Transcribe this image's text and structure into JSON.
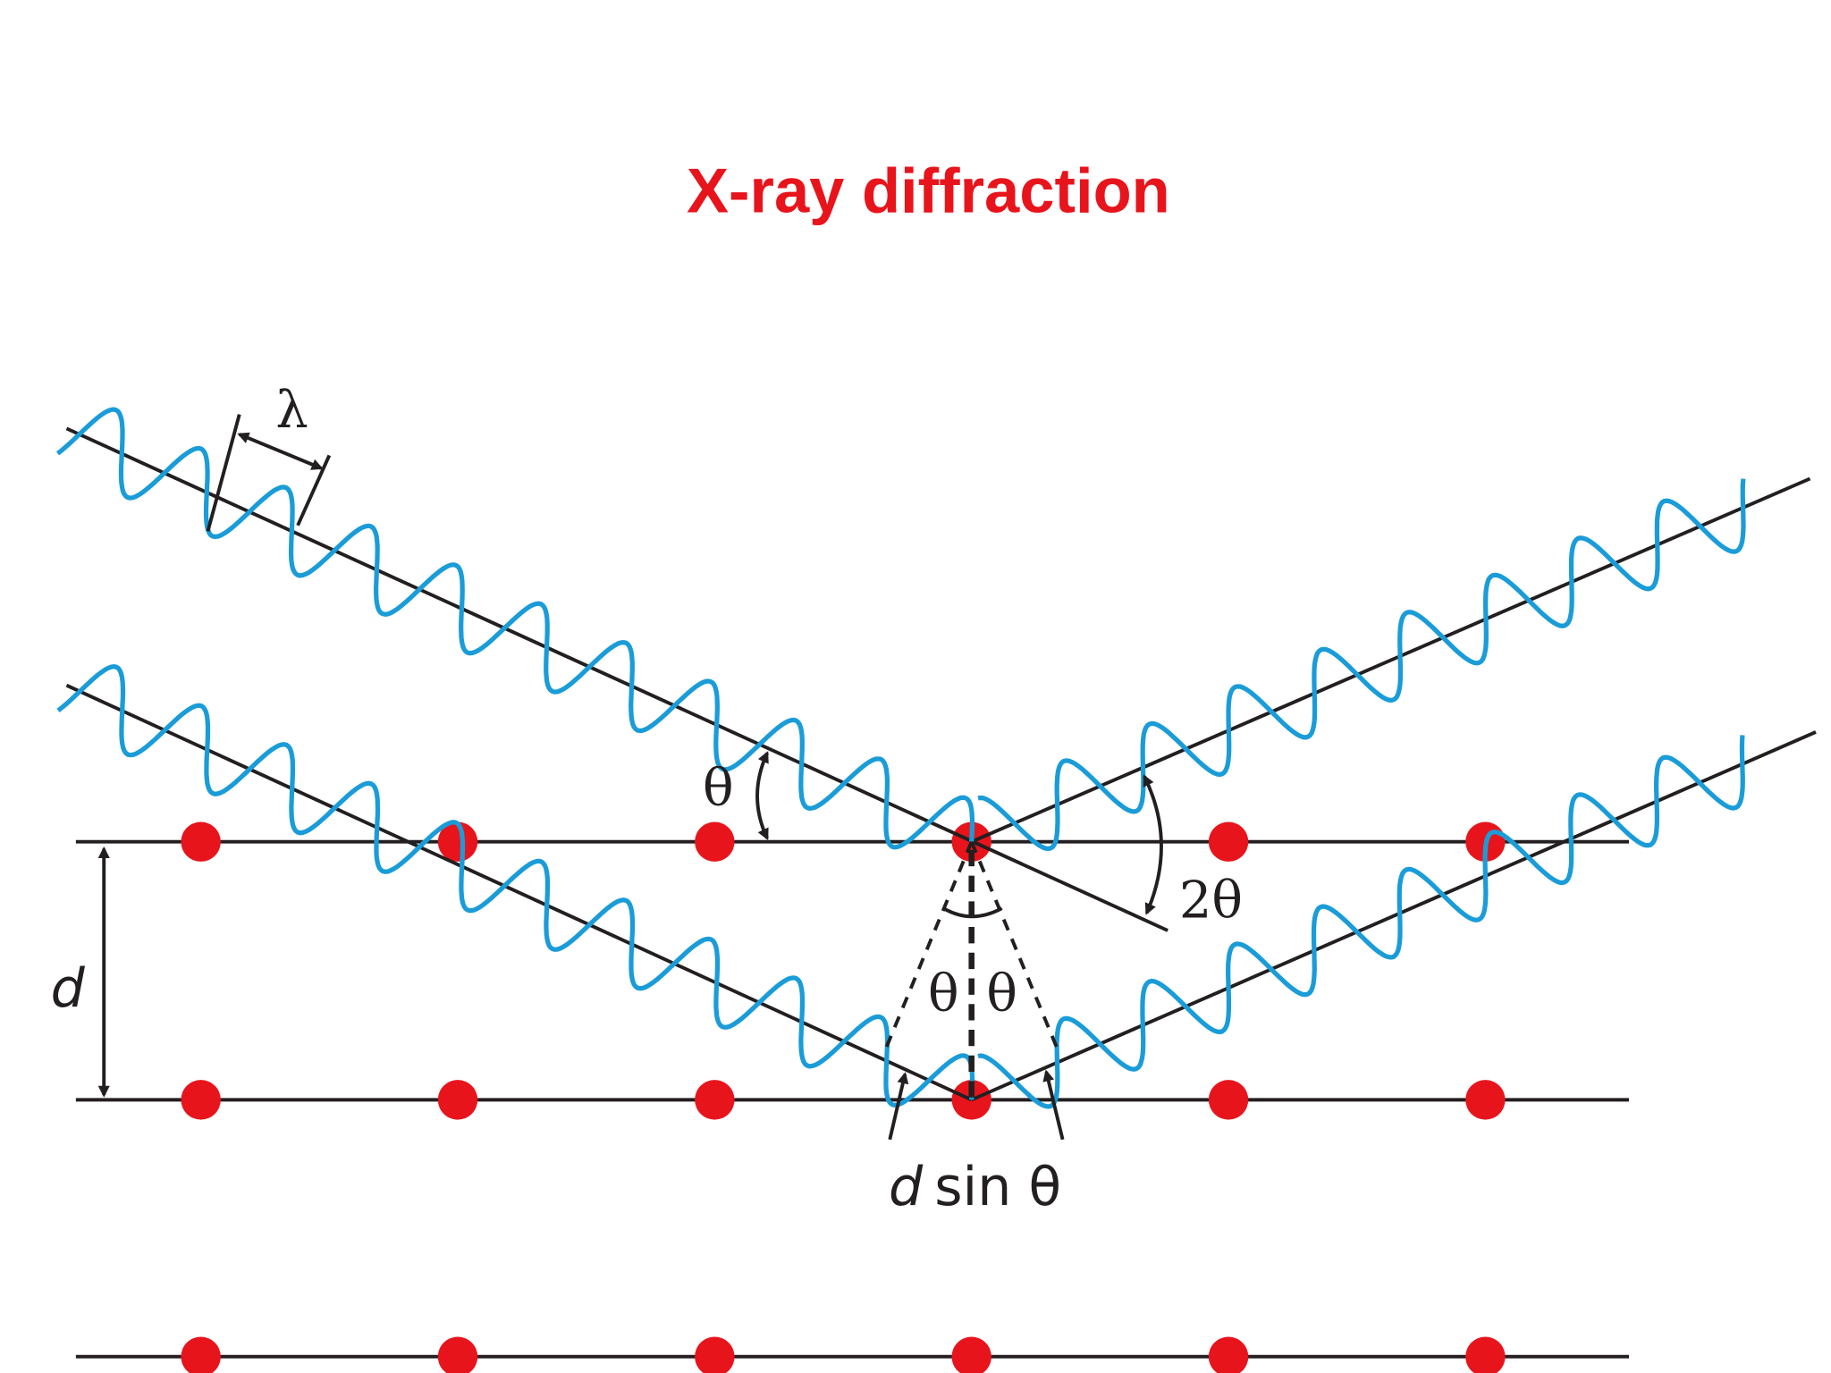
{
  "title": "X-ray diffraction",
  "labels": {
    "wavelength": "λ",
    "incident_angle": "θ",
    "scattering_angle": "2θ",
    "spacing": "d",
    "left_angle": "θ",
    "right_angle": "θ",
    "path_difference": {
      "variable": "d",
      "rest": "sin θ"
    }
  }
}
